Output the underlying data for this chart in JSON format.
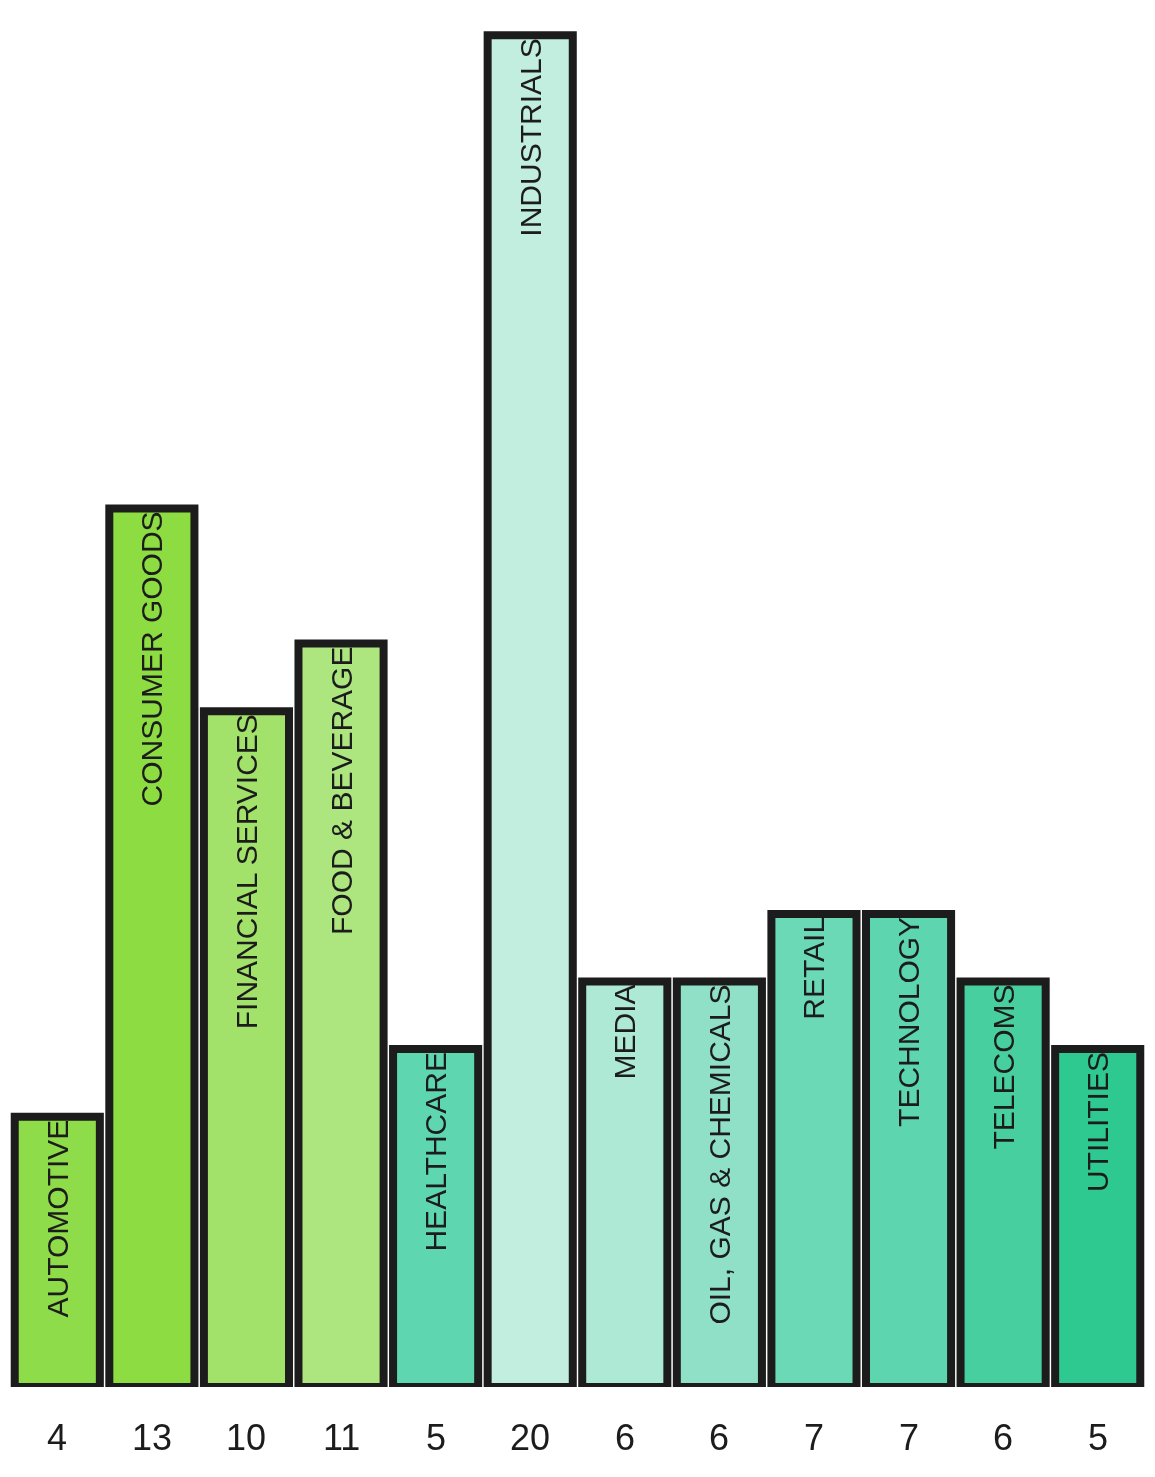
{
  "chart_data": {
    "type": "bar",
    "categories": [
      "AUTOMOTIVE",
      "CONSUMER GOODS",
      "FINANCIAL SERVICES",
      "FOOD & BEVERAGE",
      "HEALTHCARE",
      "INDUSTRIALS",
      "MEDIA",
      "OIL, GAS & CHEMICALS",
      "RETAIL",
      "TECHNOLOGY",
      "TELECOMS",
      "UTILITIES"
    ],
    "values": [
      4,
      13,
      10,
      11,
      5,
      20,
      6,
      6,
      7,
      7,
      6,
      5
    ],
    "colors": [
      "#8fdc4a",
      "#8cdc42",
      "#a3e26a",
      "#ade67e",
      "#5ed6b0",
      "#c2eee0",
      "#aee9d6",
      "#8fe0c6",
      "#6cd9b6",
      "#5dd5ae",
      "#48cf9f",
      "#2ec990"
    ],
    "data_labels": true
  }
}
